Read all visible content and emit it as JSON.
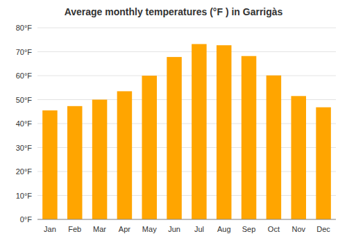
{
  "chart_data": {
    "type": "bar",
    "title": "Average monthly temperatures (°F ) in Garrigàs",
    "categories": [
      "Jan",
      "Feb",
      "Mar",
      "Apr",
      "May",
      "Jun",
      "Jul",
      "Aug",
      "Sep",
      "Oct",
      "Nov",
      "Dec"
    ],
    "values": [
      45.5,
      47.3,
      50.0,
      53.5,
      60.0,
      67.8,
      73.2,
      72.7,
      68.2,
      60.1,
      51.5,
      46.8
    ],
    "color": "#FFA500",
    "ylim": [
      0,
      80
    ],
    "yticks": [
      {
        "value": 0,
        "label": "0°F"
      },
      {
        "value": 10,
        "label": "10°F"
      },
      {
        "value": 20,
        "label": "20°F"
      },
      {
        "value": 30,
        "label": "30°F"
      },
      {
        "value": 40,
        "label": "40°F"
      },
      {
        "value": 50,
        "label": "50°F"
      },
      {
        "value": 60,
        "label": "60°F"
      },
      {
        "value": 70,
        "label": "70°F"
      },
      {
        "value": 80,
        "label": "80°F"
      }
    ],
    "grid": true
  }
}
